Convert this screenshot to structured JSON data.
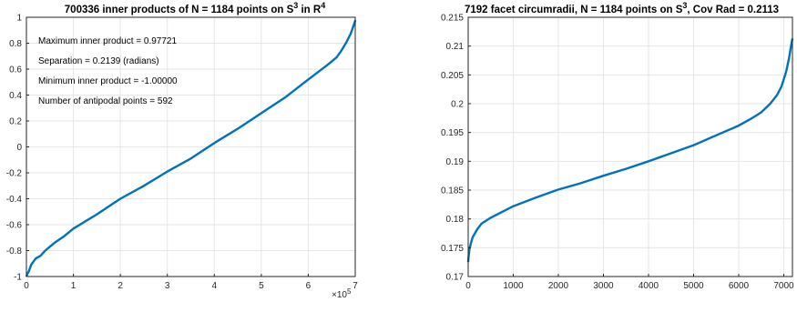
{
  "chart_data": [
    {
      "type": "line",
      "title": "700336 inner products of N = 1184 points on S",
      "title_sup1": "3",
      "title_mid": " in R",
      "title_sup2": "4",
      "xlim": [
        0,
        700000
      ],
      "ylim": [
        -1,
        1
      ],
      "x_ticks": [
        0,
        1,
        2,
        3,
        4,
        5,
        6,
        7
      ],
      "x_multiplier_base": "×10",
      "x_multiplier_exp": "5",
      "y_ticks": [
        "-1",
        "-0.8",
        "-0.6",
        "-0.4",
        "-0.2",
        "0",
        "0.2",
        "0.4",
        "0.6",
        "0.8",
        "1"
      ],
      "grid": true,
      "color": "#0072BD",
      "annotations": [
        "Maximum inner product = 0.97721",
        "Separation = 0.2139 (radians)",
        "Minimum inner product = -1.00000",
        "Number of antipodal points = 592"
      ],
      "series": [
        {
          "x": [
            0,
            2000,
            5000,
            10000,
            20000,
            30000,
            40000,
            50000,
            60000,
            80000,
            100000,
            150000,
            200000,
            250000,
            300000,
            350000,
            400000,
            450000,
            500000,
            550000,
            600000,
            640000,
            660000,
            670000,
            680000,
            690000,
            695000,
            700336
          ],
          "y": [
            -1.0,
            -0.98,
            -0.96,
            -0.91,
            -0.86,
            -0.84,
            -0.8,
            -0.77,
            -0.74,
            -0.69,
            -0.63,
            -0.52,
            -0.4,
            -0.3,
            -0.19,
            -0.09,
            0.03,
            0.14,
            0.26,
            0.38,
            0.52,
            0.63,
            0.69,
            0.74,
            0.8,
            0.87,
            0.92,
            0.97721
          ]
        }
      ]
    },
    {
      "type": "line",
      "title": "7192 facet circumradii, N = 1184 points on S",
      "title_sup1": "3",
      "title_mid": ", Cov Rad = 0.2113",
      "xlim": [
        0,
        7192
      ],
      "ylim": [
        0.17,
        0.215
      ],
      "x_ticks": [
        "0",
        "1000",
        "2000",
        "3000",
        "4000",
        "5000",
        "6000",
        "7000"
      ],
      "y_ticks": [
        "0.17",
        "0.175",
        "0.18",
        "0.185",
        "0.19",
        "0.195",
        "0.2",
        "0.205",
        "0.21",
        "0.215"
      ],
      "grid": true,
      "color": "#0072BD",
      "series": [
        {
          "x": [
            0,
            10,
            30,
            60,
            100,
            200,
            300,
            500,
            700,
            1000,
            1500,
            2000,
            2500,
            3000,
            3500,
            4000,
            4500,
            5000,
            5500,
            6000,
            6300,
            6500,
            6700,
            6850,
            6950,
            7050,
            7120,
            7160,
            7192
          ],
          "y": [
            0.1725,
            0.1735,
            0.1748,
            0.1758,
            0.1768,
            0.1782,
            0.1792,
            0.1802,
            0.181,
            0.1822,
            0.1837,
            0.1851,
            0.1862,
            0.1875,
            0.1887,
            0.19,
            0.1914,
            0.1928,
            0.1945,
            0.1962,
            0.1975,
            0.1985,
            0.2,
            0.2015,
            0.203,
            0.2055,
            0.208,
            0.21,
            0.2113
          ]
        }
      ]
    }
  ]
}
